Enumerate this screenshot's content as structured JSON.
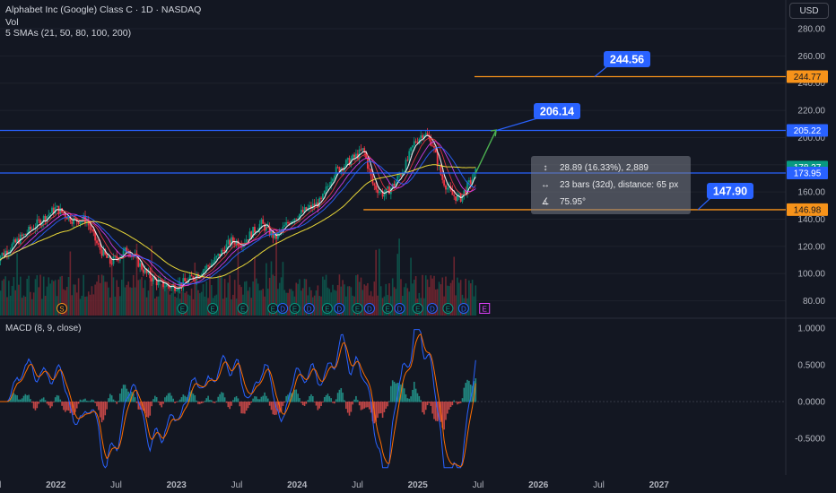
{
  "header": {
    "symbol_line": "Alphabet Inc (Google) Class C · 1D · NASDAQ",
    "volume_label": "Vol",
    "sma_label": "5 SMAs (21, 50, 80, 100, 200)"
  },
  "currency_button": "USD",
  "macd_panel": {
    "title": "MACD (8, 9, close)",
    "ticks": [
      "1.0000",
      "0.5000",
      "0.0000",
      "-0.5000"
    ]
  },
  "price_axis": {
    "ticks": [
      "280.00",
      "260.00",
      "240.00",
      "220.00",
      "200.00",
      "180.00",
      "160.00",
      "140.00",
      "120.00",
      "100.00",
      "80.00"
    ]
  },
  "time_axis": {
    "labels": [
      "Jul",
      "2022",
      "Jul",
      "2023",
      "Jul",
      "2024",
      "Jul",
      "2025",
      "Jul",
      "2026",
      "Jul",
      "2027"
    ]
  },
  "price_tags": [
    {
      "label": "244.77",
      "color": "#f7931a"
    },
    {
      "label": "205.22",
      "color": "#2962ff"
    },
    {
      "label": "178.27",
      "color": "#089981"
    },
    {
      "label": "173.95",
      "color": "#2962ff"
    },
    {
      "label": "146.98",
      "color": "#f7931a"
    }
  ],
  "callouts": [
    {
      "label": "244.56",
      "color": "#2962ff"
    },
    {
      "label": "206.14",
      "color": "#2962ff"
    },
    {
      "label": "147.90",
      "color": "#2962ff"
    }
  ],
  "measure": {
    "price_change": "28.89 (16.33%), 2,889",
    "bars_info": "23 bars (32d), distance: 65 px",
    "angle": "75.95°"
  },
  "event_markers": {
    "split_label": "S",
    "earnings_label": "E",
    "dividend_label": "D",
    "upcoming_label": "E"
  },
  "colors": {
    "background": "#131722",
    "up": "#089981",
    "down": "#f23645",
    "blue_line": "#2962ff",
    "orange_line": "#f7931a",
    "sma_yellow": "#ffeb3b",
    "macd_line": "#2962ff",
    "signal_line": "#ff6d00"
  }
}
